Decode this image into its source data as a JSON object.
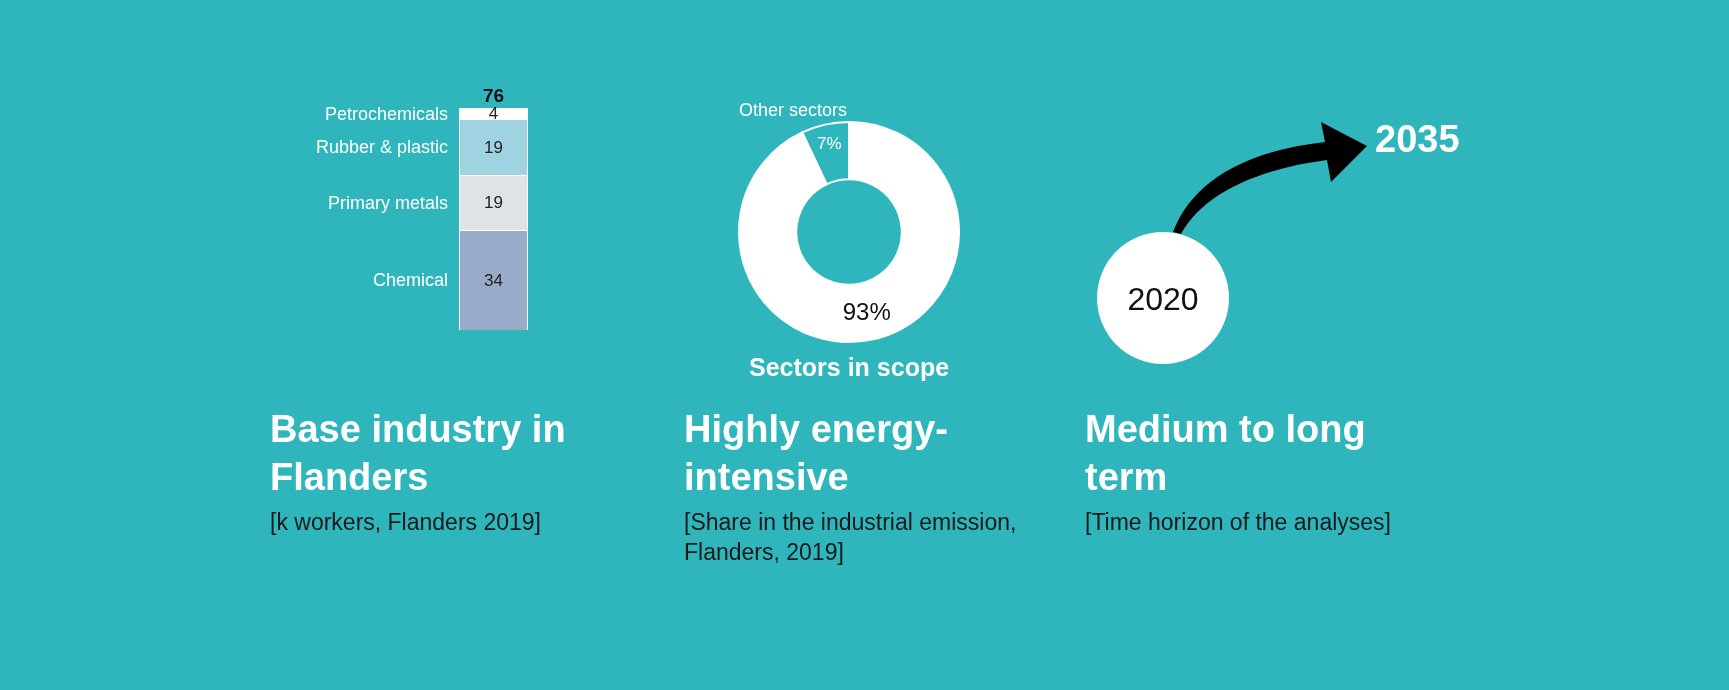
{
  "chart_data": [
    {
      "type": "bar",
      "stacked": true,
      "title": "Base industry in Flanders",
      "subtitle": "[k workers, Flanders 2019]",
      "categories": [
        null
      ],
      "data_labels": true,
      "totals": [
        "76"
      ],
      "series": [
        {
          "name": "Chemical",
          "color": "#98abc8",
          "values": [
            34
          ]
        },
        {
          "name": "Primary metals",
          "color": "#dfe2e7",
          "values": [
            19
          ]
        },
        {
          "name": "Rubber & plastic",
          "color": "#9fd3e2",
          "values": [
            19
          ]
        },
        {
          "name": "Petrochemicals",
          "color": "#ffffff",
          "values": [
            4
          ]
        }
      ]
    },
    {
      "type": "donut",
      "title": "Highly energy-intensive",
      "subtitle": "[Share in the industrial emission, Flanders, 2019]",
      "categories": [
        "Other sectors",
        "Sectors in scope"
      ],
      "values": [
        7,
        93
      ],
      "value_labels": [
        "7%",
        "93%"
      ],
      "colors": [
        "#2fb6bc",
        "#ffffff"
      ]
    },
    {
      "type": "other",
      "title": "Medium to long term",
      "subtitle": "[Time horizon of the analyses]",
      "annotations": [
        "2020",
        "2035"
      ]
    }
  ]
}
